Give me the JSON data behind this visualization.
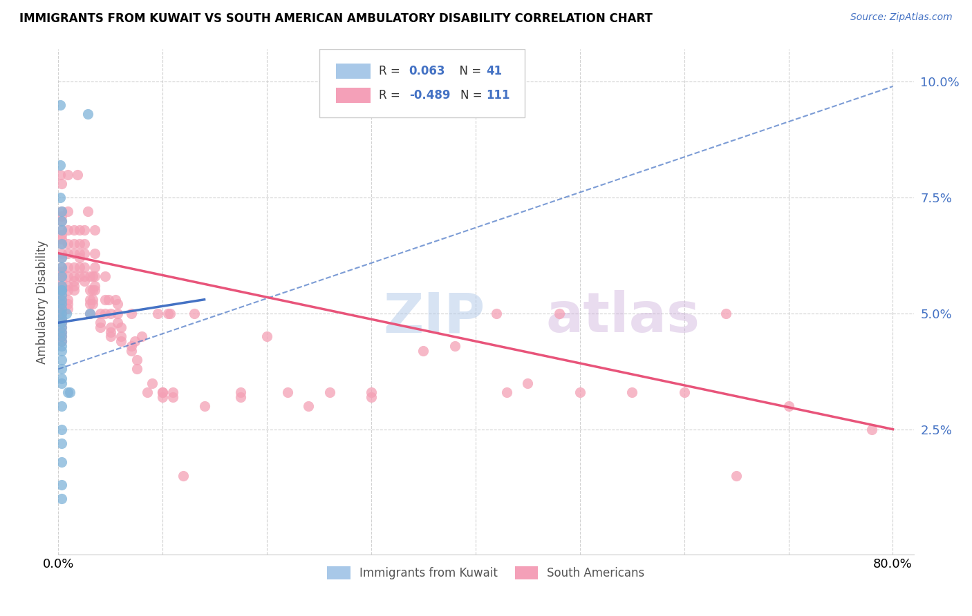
{
  "title": "IMMIGRANTS FROM KUWAIT VS SOUTH AMERICAN AMBULATORY DISABILITY CORRELATION CHART",
  "source": "Source: ZipAtlas.com",
  "ylabel": "Ambulatory Disability",
  "kuwait_color": "#7fb3d9",
  "south_american_color": "#f4a0b5",
  "kuwait_line_color": "#4472c4",
  "south_american_line_color": "#e8547a",
  "kuwait_line": {
    "x0": 0.0,
    "y0": 0.048,
    "x1": 0.14,
    "y1": 0.053
  },
  "kuwait_dashed_line": {
    "x0": 0.0,
    "y0": 0.038,
    "x1": 0.8,
    "y1": 0.099
  },
  "sa_line": {
    "x0": 0.0,
    "y0": 0.063,
    "x1": 0.8,
    "y1": 0.025
  },
  "kuwait_points": [
    [
      0.002,
      0.095
    ],
    [
      0.028,
      0.093
    ],
    [
      0.002,
      0.082
    ],
    [
      0.002,
      0.075
    ],
    [
      0.003,
      0.072
    ],
    [
      0.003,
      0.07
    ],
    [
      0.003,
      0.068
    ],
    [
      0.003,
      0.065
    ],
    [
      0.003,
      0.062
    ],
    [
      0.003,
      0.06
    ],
    [
      0.003,
      0.058
    ],
    [
      0.003,
      0.055
    ],
    [
      0.003,
      0.053
    ],
    [
      0.003,
      0.052
    ],
    [
      0.003,
      0.051
    ],
    [
      0.003,
      0.05
    ],
    [
      0.003,
      0.049
    ],
    [
      0.003,
      0.048
    ],
    [
      0.003,
      0.047
    ],
    [
      0.003,
      0.046
    ],
    [
      0.003,
      0.045
    ],
    [
      0.003,
      0.044
    ],
    [
      0.003,
      0.043
    ],
    [
      0.003,
      0.042
    ],
    [
      0.008,
      0.05
    ],
    [
      0.03,
      0.05
    ],
    [
      0.003,
      0.038
    ],
    [
      0.003,
      0.036
    ],
    [
      0.003,
      0.035
    ],
    [
      0.009,
      0.033
    ],
    [
      0.011,
      0.033
    ],
    [
      0.003,
      0.03
    ],
    [
      0.003,
      0.025
    ],
    [
      0.003,
      0.022
    ],
    [
      0.003,
      0.018
    ],
    [
      0.003,
      0.013
    ],
    [
      0.003,
      0.055
    ],
    [
      0.003,
      0.054
    ],
    [
      0.003,
      0.056
    ],
    [
      0.003,
      0.04
    ],
    [
      0.003,
      0.01
    ]
  ],
  "south_american_points": [
    [
      0.002,
      0.08
    ],
    [
      0.003,
      0.078
    ],
    [
      0.003,
      0.072
    ],
    [
      0.003,
      0.071
    ],
    [
      0.003,
      0.07
    ],
    [
      0.003,
      0.068
    ],
    [
      0.003,
      0.067
    ],
    [
      0.003,
      0.066
    ],
    [
      0.003,
      0.065
    ],
    [
      0.003,
      0.063
    ],
    [
      0.003,
      0.062
    ],
    [
      0.003,
      0.06
    ],
    [
      0.003,
      0.059
    ],
    [
      0.003,
      0.058
    ],
    [
      0.003,
      0.057
    ],
    [
      0.003,
      0.056
    ],
    [
      0.003,
      0.055
    ],
    [
      0.003,
      0.054
    ],
    [
      0.003,
      0.053
    ],
    [
      0.003,
      0.052
    ],
    [
      0.003,
      0.051
    ],
    [
      0.003,
      0.05
    ],
    [
      0.003,
      0.049
    ],
    [
      0.003,
      0.048
    ],
    [
      0.003,
      0.047
    ],
    [
      0.003,
      0.046
    ],
    [
      0.003,
      0.045
    ],
    [
      0.003,
      0.044
    ],
    [
      0.009,
      0.08
    ],
    [
      0.009,
      0.072
    ],
    [
      0.009,
      0.068
    ],
    [
      0.009,
      0.065
    ],
    [
      0.009,
      0.063
    ],
    [
      0.009,
      0.06
    ],
    [
      0.009,
      0.058
    ],
    [
      0.009,
      0.056
    ],
    [
      0.009,
      0.055
    ],
    [
      0.009,
      0.053
    ],
    [
      0.009,
      0.052
    ],
    [
      0.009,
      0.051
    ],
    [
      0.015,
      0.068
    ],
    [
      0.015,
      0.065
    ],
    [
      0.015,
      0.063
    ],
    [
      0.015,
      0.06
    ],
    [
      0.015,
      0.058
    ],
    [
      0.015,
      0.057
    ],
    [
      0.015,
      0.056
    ],
    [
      0.015,
      0.055
    ],
    [
      0.018,
      0.08
    ],
    [
      0.02,
      0.068
    ],
    [
      0.02,
      0.065
    ],
    [
      0.02,
      0.063
    ],
    [
      0.02,
      0.062
    ],
    [
      0.02,
      0.06
    ],
    [
      0.02,
      0.058
    ],
    [
      0.025,
      0.068
    ],
    [
      0.025,
      0.065
    ],
    [
      0.025,
      0.063
    ],
    [
      0.025,
      0.06
    ],
    [
      0.025,
      0.058
    ],
    [
      0.025,
      0.057
    ],
    [
      0.028,
      0.072
    ],
    [
      0.03,
      0.058
    ],
    [
      0.03,
      0.055
    ],
    [
      0.03,
      0.053
    ],
    [
      0.03,
      0.052
    ],
    [
      0.03,
      0.05
    ],
    [
      0.033,
      0.058
    ],
    [
      0.033,
      0.055
    ],
    [
      0.033,
      0.053
    ],
    [
      0.033,
      0.052
    ],
    [
      0.035,
      0.068
    ],
    [
      0.035,
      0.063
    ],
    [
      0.035,
      0.06
    ],
    [
      0.035,
      0.058
    ],
    [
      0.035,
      0.056
    ],
    [
      0.035,
      0.055
    ],
    [
      0.04,
      0.05
    ],
    [
      0.04,
      0.048
    ],
    [
      0.04,
      0.047
    ],
    [
      0.045,
      0.058
    ],
    [
      0.045,
      0.053
    ],
    [
      0.045,
      0.05
    ],
    [
      0.048,
      0.053
    ],
    [
      0.05,
      0.05
    ],
    [
      0.05,
      0.047
    ],
    [
      0.05,
      0.046
    ],
    [
      0.05,
      0.045
    ],
    [
      0.055,
      0.053
    ],
    [
      0.057,
      0.052
    ],
    [
      0.057,
      0.05
    ],
    [
      0.057,
      0.048
    ],
    [
      0.06,
      0.047
    ],
    [
      0.06,
      0.045
    ],
    [
      0.06,
      0.044
    ],
    [
      0.07,
      0.042
    ],
    [
      0.07,
      0.043
    ],
    [
      0.07,
      0.05
    ],
    [
      0.073,
      0.044
    ],
    [
      0.075,
      0.04
    ],
    [
      0.075,
      0.038
    ],
    [
      0.08,
      0.045
    ],
    [
      0.085,
      0.033
    ],
    [
      0.09,
      0.035
    ],
    [
      0.095,
      0.05
    ],
    [
      0.1,
      0.033
    ],
    [
      0.1,
      0.032
    ],
    [
      0.1,
      0.033
    ],
    [
      0.105,
      0.05
    ],
    [
      0.107,
      0.05
    ],
    [
      0.11,
      0.033
    ],
    [
      0.11,
      0.032
    ],
    [
      0.12,
      0.015
    ],
    [
      0.13,
      0.05
    ],
    [
      0.14,
      0.03
    ],
    [
      0.175,
      0.033
    ],
    [
      0.175,
      0.032
    ],
    [
      0.2,
      0.045
    ],
    [
      0.22,
      0.033
    ],
    [
      0.24,
      0.03
    ],
    [
      0.26,
      0.033
    ],
    [
      0.3,
      0.033
    ],
    [
      0.3,
      0.032
    ],
    [
      0.35,
      0.042
    ],
    [
      0.38,
      0.043
    ],
    [
      0.42,
      0.05
    ],
    [
      0.43,
      0.033
    ],
    [
      0.45,
      0.035
    ],
    [
      0.48,
      0.05
    ],
    [
      0.5,
      0.033
    ],
    [
      0.55,
      0.033
    ],
    [
      0.6,
      0.033
    ],
    [
      0.64,
      0.05
    ],
    [
      0.65,
      0.015
    ],
    [
      0.7,
      0.03
    ],
    [
      0.78,
      0.025
    ]
  ],
  "xlim": [
    0.0,
    0.82
  ],
  "ylim": [
    -0.002,
    0.107
  ],
  "x_ticks": [
    0.0,
    0.1,
    0.2,
    0.3,
    0.4,
    0.5,
    0.6,
    0.7,
    0.8
  ],
  "x_tick_labels": [
    "0.0%",
    "",
    "",
    "",
    "",
    "",
    "",
    "",
    "80.0%"
  ],
  "y_ticks": [
    0.025,
    0.05,
    0.075,
    0.1
  ],
  "y_tick_labels": [
    "2.5%",
    "5.0%",
    "7.5%",
    "10.0%"
  ],
  "figsize": [
    14.06,
    8.92
  ],
  "dpi": 100
}
